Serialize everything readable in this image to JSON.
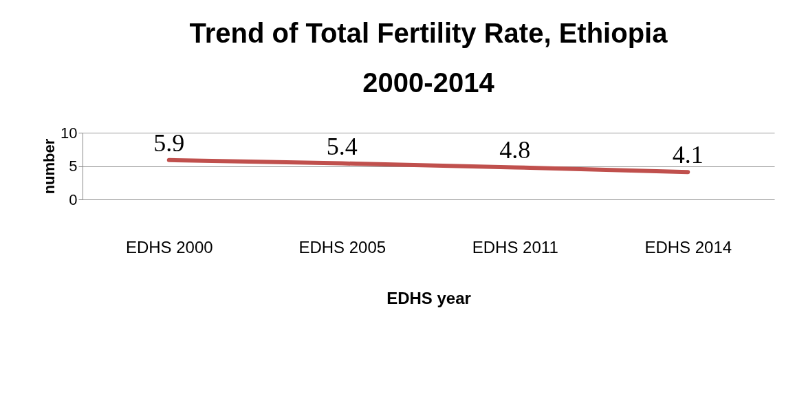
{
  "chart_data": {
    "type": "line",
    "title": "Trend of Total Fertility Rate, Ethiopia 2000-2014",
    "xlabel": "EDHS year",
    "ylabel": "number",
    "categories": [
      "EDHS 2000",
      "EDHS 2005",
      "EDHS 2011",
      "EDHS 2014"
    ],
    "series": [
      {
        "color": "#c0504d",
        "values": [
          5.9,
          5.4,
          4.8,
          4.1
        ]
      }
    ],
    "ylim": [
      0,
      10
    ],
    "yticks": [
      0,
      5,
      10
    ],
    "grid": "y",
    "data_labels": true,
    "legend": false,
    "marker": "none",
    "line_style": "solid"
  }
}
